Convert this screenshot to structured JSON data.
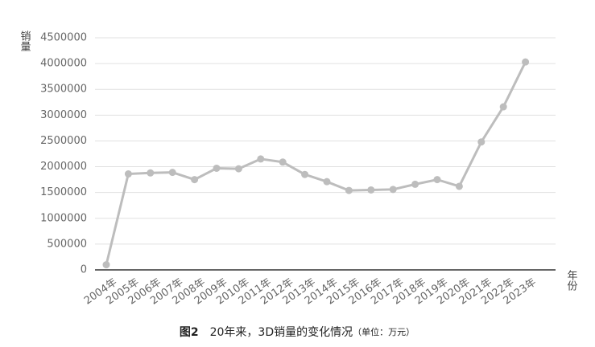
{
  "chart_data": {
    "type": "line",
    "y_label": "销量",
    "x_label": "年份",
    "caption_figure": "图2",
    "caption_text": "20年来，3D销量的变化情况",
    "caption_unit": "（单位：万元）",
    "categories": [
      "2004年",
      "2005年",
      "2006年",
      "2007年",
      "2008年",
      "2009年",
      "2010年",
      "2011年",
      "2012年",
      "2013年",
      "2014年",
      "2015年",
      "2016年",
      "2017年",
      "2018年",
      "2019年",
      "2020年",
      "2021年",
      "2022年",
      "2023年"
    ],
    "series": [
      {
        "color": "#bdbdbd",
        "values": [
          100000,
          1860000,
          1880000,
          1890000,
          1750000,
          1970000,
          1960000,
          2150000,
          2090000,
          1850000,
          1710000,
          1540000,
          1550000,
          1560000,
          1660000,
          1750000,
          1620000,
          2480000,
          3160000,
          4030000
        ]
      }
    ],
    "ylim": [
      0,
      4500000
    ],
    "yticks": [
      0,
      500000,
      1000000,
      1500000,
      2000000,
      2500000,
      3000000,
      3500000,
      4000000,
      4500000
    ],
    "grid": true
  }
}
